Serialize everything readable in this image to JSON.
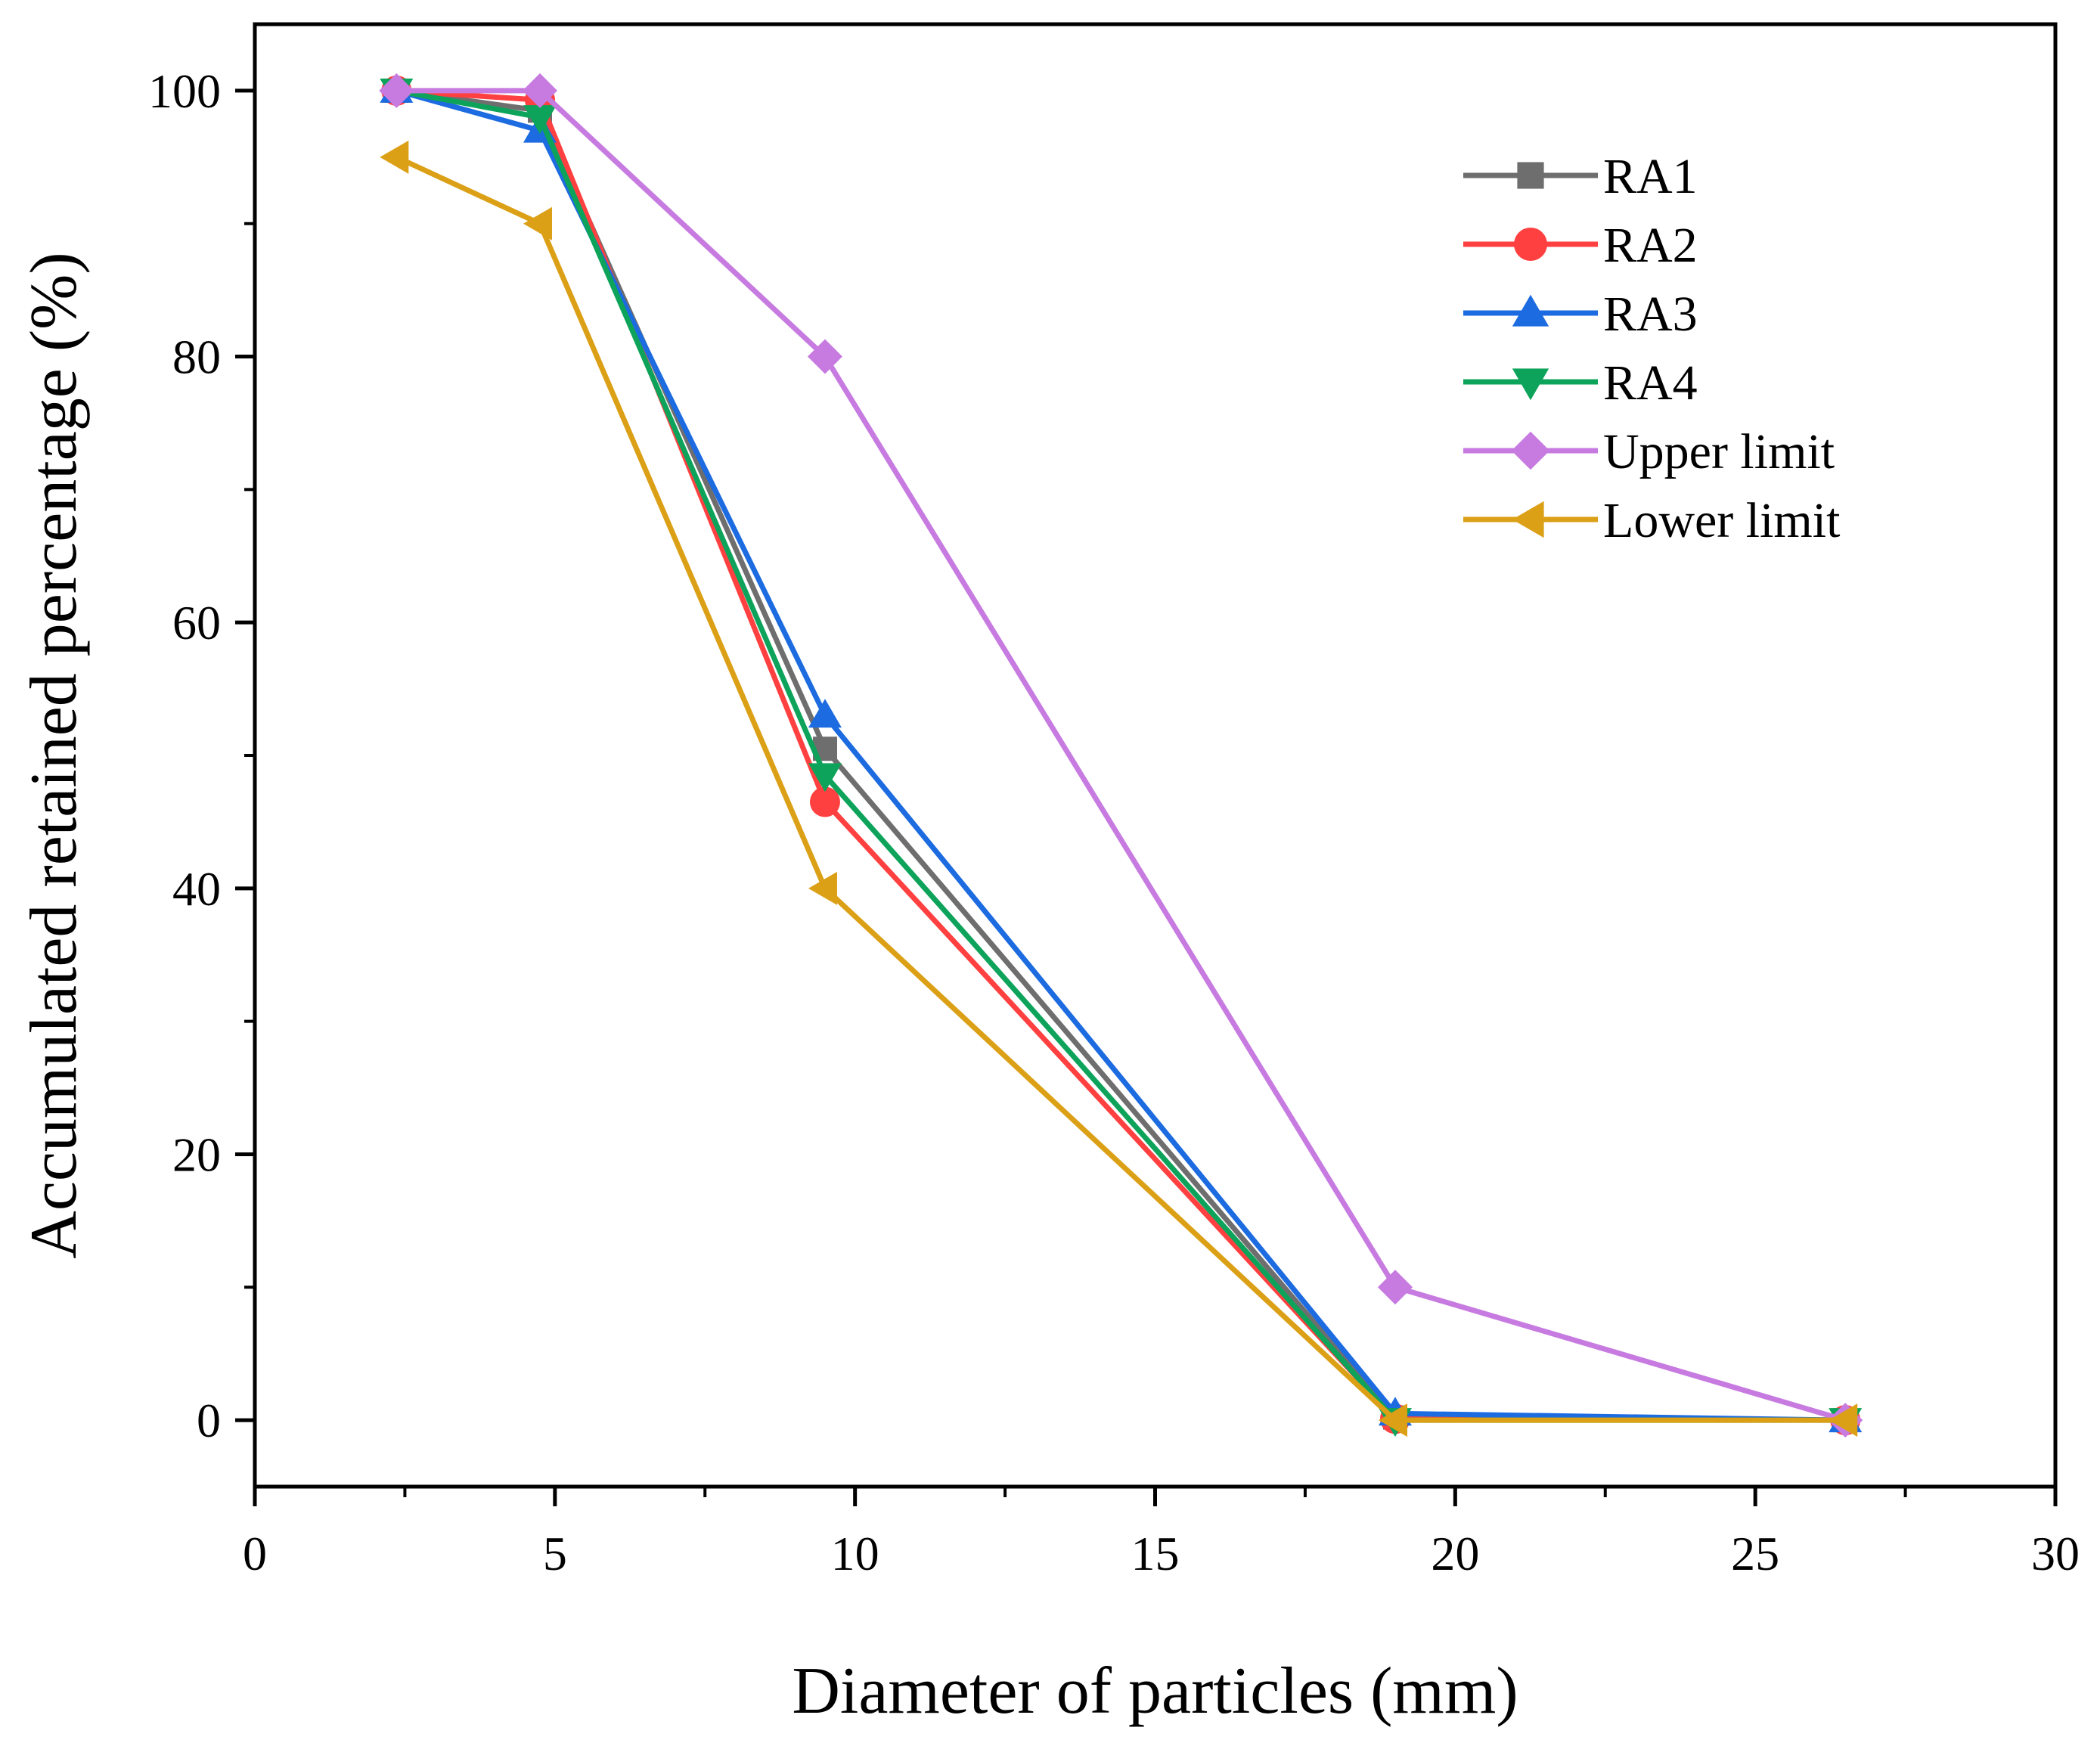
{
  "chart_data": {
    "type": "line",
    "title": "",
    "xlabel": "Diameter of particles (mm)",
    "ylabel": "Accumulated retained percentage (%)",
    "xlim": [
      0,
      30
    ],
    "ylim": [
      -5,
      105
    ],
    "xticks": [
      0,
      5,
      10,
      15,
      20,
      25,
      30
    ],
    "yticks": [
      0,
      20,
      40,
      60,
      80,
      100
    ],
    "grid": false,
    "legend_position": "top-right",
    "series": [
      {
        "name": "RA1",
        "color": "#6e6e6e",
        "marker": "square",
        "x": [
          2.36,
          4.75,
          9.5,
          19,
          26.5
        ],
        "y": [
          100,
          98.5,
          50.5,
          0.2,
          0
        ]
      },
      {
        "name": "RA2",
        "color": "#ff4040",
        "marker": "circle",
        "x": [
          2.36,
          4.75,
          9.5,
          19,
          26.5
        ],
        "y": [
          100,
          99.3,
          46.5,
          0.1,
          0
        ]
      },
      {
        "name": "RA3",
        "color": "#1c6be0",
        "marker": "triangle-up",
        "x": [
          2.36,
          4.75,
          9.5,
          19,
          26.5
        ],
        "y": [
          100,
          97,
          53,
          0.5,
          0
        ]
      },
      {
        "name": "RA4",
        "color": "#0ea35a",
        "marker": "triangle-down",
        "x": [
          2.36,
          4.75,
          9.5,
          19,
          26.5
        ],
        "y": [
          100,
          98,
          48.5,
          0,
          0
        ]
      },
      {
        "name": "Upper limit",
        "color": "#c77be0",
        "marker": "diamond",
        "x": [
          2.36,
          4.75,
          9.5,
          19,
          26.5
        ],
        "y": [
          100,
          100,
          80,
          10,
          0
        ]
      },
      {
        "name": "Lower limit",
        "color": "#dba016",
        "marker": "triangle-left",
        "x": [
          2.36,
          4.75,
          9.5,
          19,
          26.5
        ],
        "y": [
          95,
          90,
          40,
          0,
          0
        ]
      }
    ]
  }
}
